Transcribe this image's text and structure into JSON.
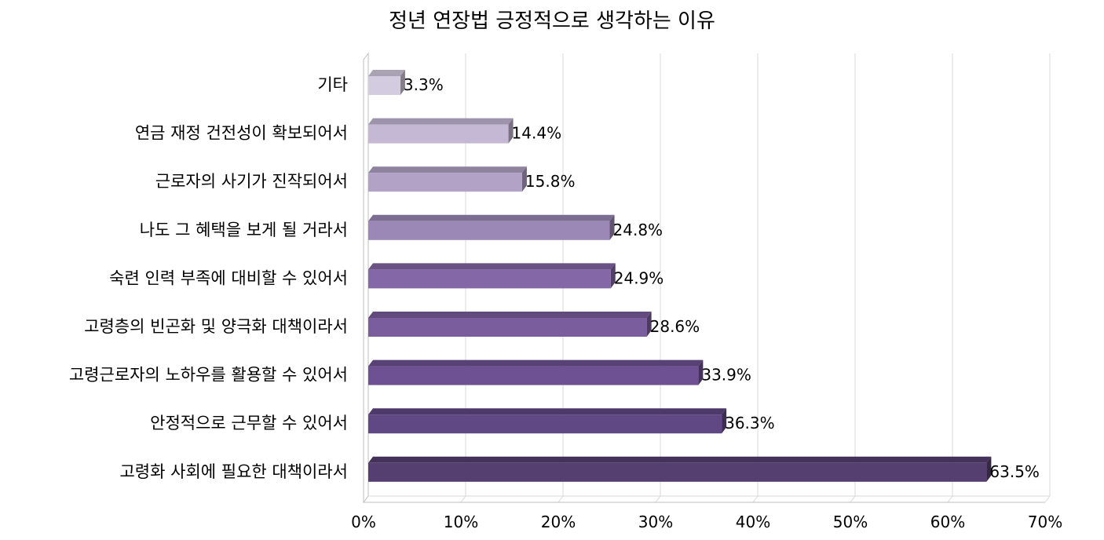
{
  "chart_data": {
    "type": "bar",
    "orientation": "horizontal",
    "style": "3d",
    "title": "정년 연장법 긍정적으로 생각하는 이유",
    "xlabel": "",
    "ylabel": "",
    "xlim": [
      0,
      70
    ],
    "x_ticks": [
      "0%",
      "10%",
      "20%",
      "30%",
      "40%",
      "50%",
      "60%",
      "70%"
    ],
    "grid": true,
    "legend": "none",
    "categories": [
      "기타",
      "연금 재정 건전성이 확보되어서",
      "근로자의 사기가 진작되어서",
      "나도 그 혜택을 보게 될 거라서",
      "숙련 인력 부족에 대비할 수 있어서",
      "고령층의 빈곤화 및 양극화 대책이라서",
      "고령근로자의 노하우를 활용할 수 있어서",
      "안정적으로 근무할 수 있어서",
      "고령화 사회에 필요한 대책이라서"
    ],
    "values": [
      3.3,
      14.4,
      15.8,
      24.8,
      24.9,
      28.6,
      33.9,
      36.3,
      63.5
    ],
    "data_labels": [
      "3.3%",
      "14.4%",
      "15.8%",
      "24.8%",
      "24.9%",
      "28.6%",
      "33.9%",
      "36.3%",
      "63.5%"
    ],
    "bar_colors": [
      "#d3cbdf",
      "#c4b8d4",
      "#b1a2c6",
      "#9b88b6",
      "#8467a6",
      "#7a5d9c",
      "#6e5192",
      "#604884",
      "#553f70"
    ]
  }
}
